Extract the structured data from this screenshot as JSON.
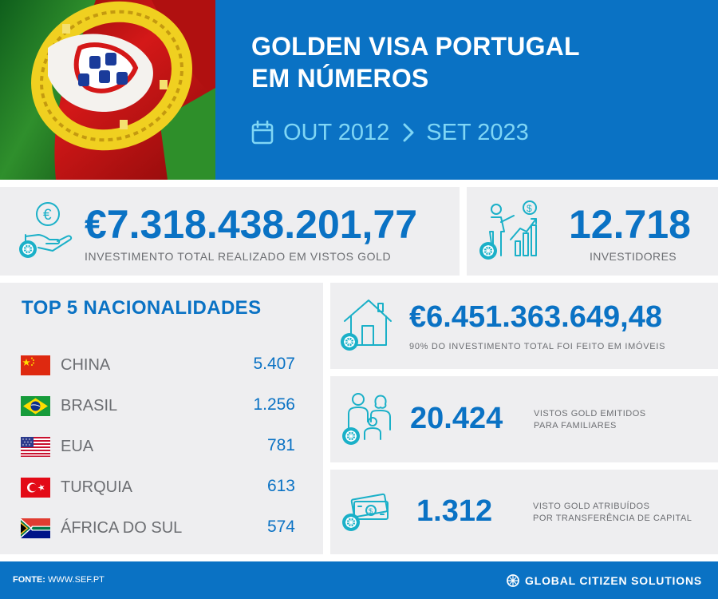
{
  "header": {
    "title_line1": "GOLDEN VISA PORTUGAL",
    "title_line2": "EM NÚMEROS",
    "period_start": "OUT 2012",
    "period_end": "SET 2023"
  },
  "stats": {
    "total_investment": {
      "value": "€7.318.438.201,77",
      "caption": "INVESTIMENTO TOTAL REALIZADO EM VISTOS GOLD"
    },
    "investors": {
      "value": "12.718",
      "caption": "INVESTIDORES"
    },
    "real_estate": {
      "value": "€6.451.363.649,48",
      "caption": "90% DO INVESTIMENTO TOTAL FOI FEITO EM IMÓVEIS"
    },
    "family_visas": {
      "value": "20.424",
      "caption_line1": "VISTOS GOLD EMITIDOS",
      "caption_line2": "PARA FAMILIARES"
    },
    "capital_transfer": {
      "value": "1.312",
      "caption_line1": "VISTO GOLD ATRIBUÍDOS",
      "caption_line2": "POR TRANSFERÊNCIA DE CAPITAL"
    }
  },
  "top5": {
    "title": "TOP 5 NACIONALIDADES",
    "items": [
      {
        "name": "CHINA",
        "count": "5.407"
      },
      {
        "name": "BRASIL",
        "count": "1.256"
      },
      {
        "name": "EUA",
        "count": "781"
      },
      {
        "name": "TURQUIA",
        "count": "613"
      },
      {
        "name": "ÁFRICA DO SUL",
        "count": "574"
      }
    ]
  },
  "footer": {
    "source_label": "FONTE:",
    "source_value": "WWW.SEF.PT",
    "brand": "GLOBAL CITIZEN SOLUTIONS"
  },
  "colors": {
    "primary_blue": "#0a72c4",
    "accent_cyan": "#7fd6f5",
    "card_gray": "#eeeef0",
    "icon_teal": "#1ab0c8"
  },
  "icons": [
    "calendar-icon",
    "chevron-right-icon",
    "euro-coin-hand-icon",
    "investor-chart-icon",
    "house-icon",
    "family-icon",
    "banknote-icon",
    "compass-badge-icon",
    "brand-logo-icon"
  ]
}
